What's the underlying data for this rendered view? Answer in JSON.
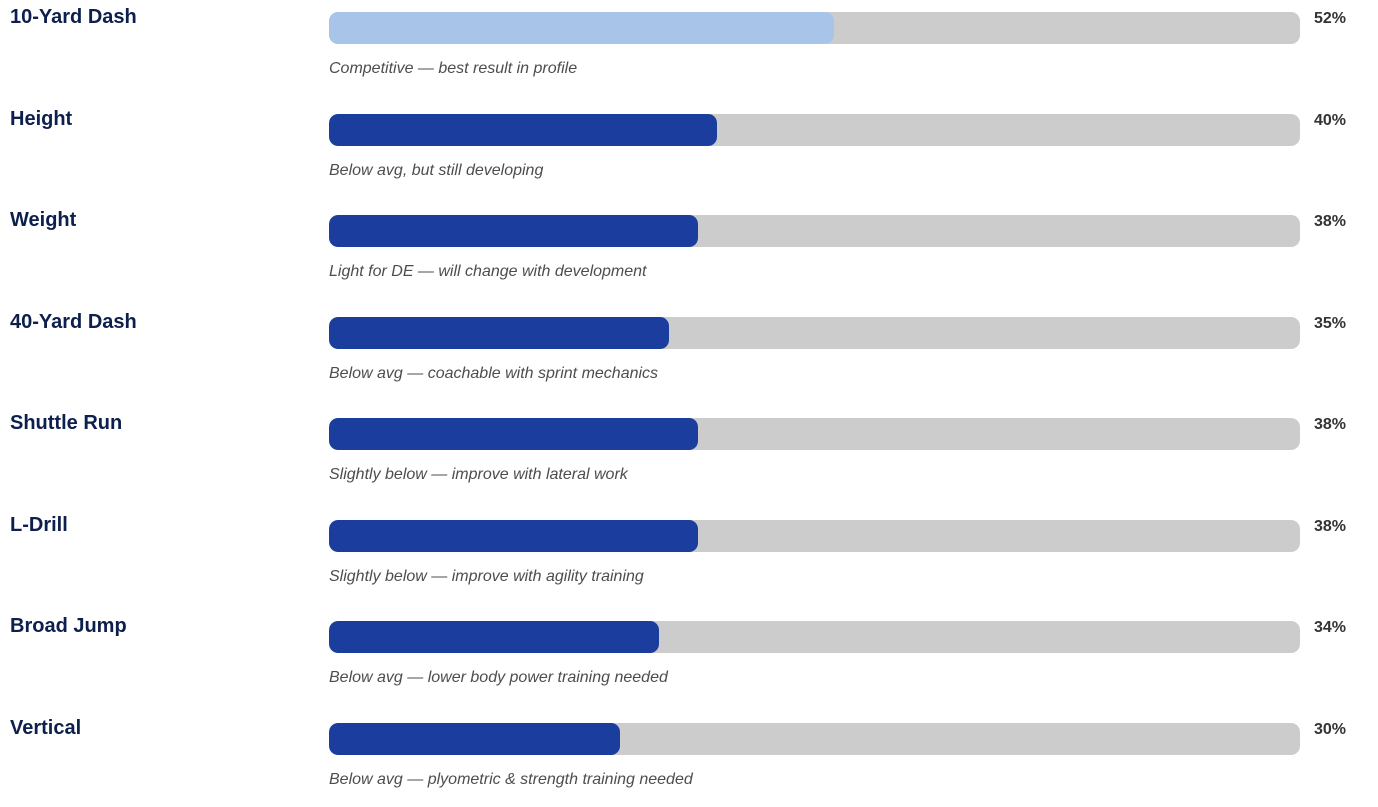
{
  "chart_data": {
    "type": "bar",
    "orientation": "horizontal",
    "categories": [
      "10-Yard Dash",
      "Height",
      "Weight",
      "40-Yard Dash",
      "Shuttle Run",
      "L-Drill",
      "Broad Jump",
      "Vertical"
    ],
    "values": [
      52,
      40,
      38,
      35,
      38,
      38,
      34,
      30
    ],
    "value_labels": [
      "52%",
      "40%",
      "38%",
      "35%",
      "38%",
      "38%",
      "34%",
      "30%"
    ],
    "notes": [
      "Competitive — best result in profile",
      "Below avg, but still developing",
      "Light for DE — will change with development",
      "Below avg — coachable with sprint mechanics",
      "Slightly below — improve with lateral work",
      "Slightly below — improve with agility training",
      "Below avg — lower body power training needed",
      "Below avg — plyometric & strength training needed"
    ],
    "xlim": [
      0,
      100
    ],
    "grid": false,
    "legend": "none",
    "colors": {
      "highlight": "#a8c4e8",
      "bar": "#1a3d9e",
      "track": "#cccccc",
      "label": "#0d1f4d"
    },
    "highlight_index": 0
  }
}
